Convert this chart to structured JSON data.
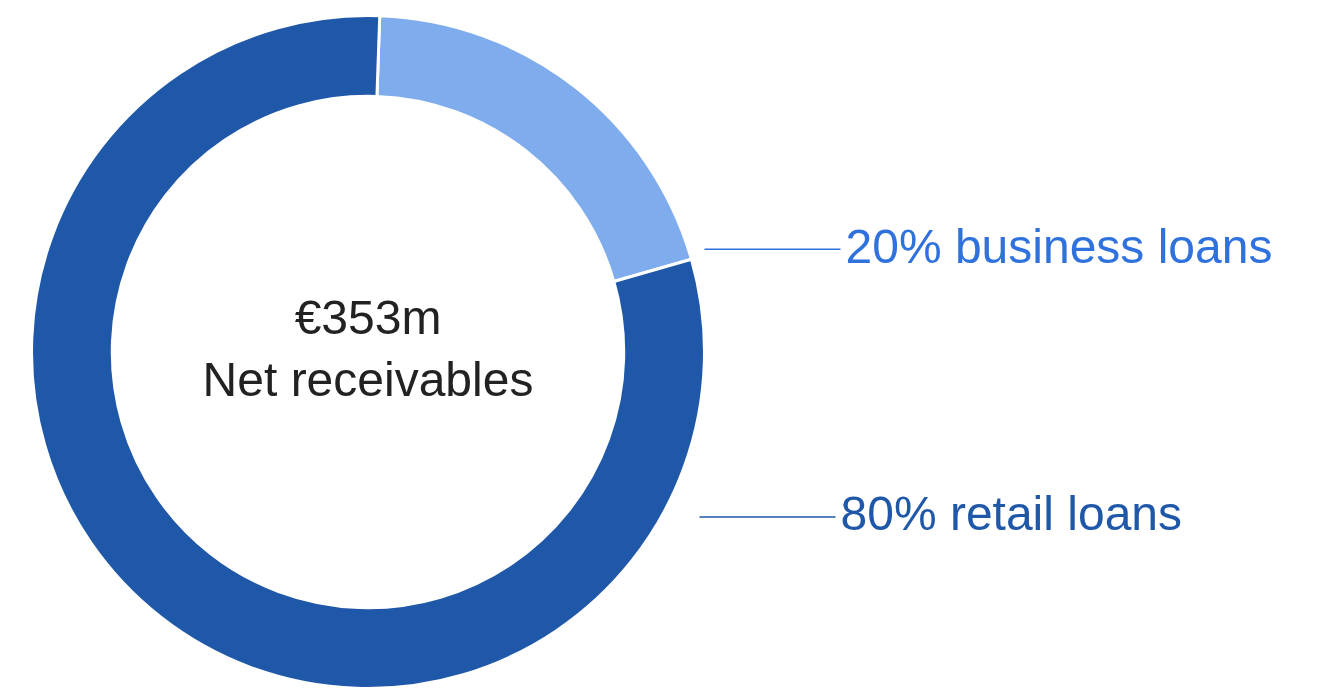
{
  "chart_data": {
    "type": "donut",
    "categories": [
      "business loans",
      "retail loans"
    ],
    "values": [
      20,
      80
    ],
    "colors": [
      "#7facec",
      "#1f58a8"
    ],
    "value_labels": [
      "20%",
      "80%"
    ],
    "legend": false,
    "annotations": [
      "€353m",
      "Net receivables"
    ]
  }
}
